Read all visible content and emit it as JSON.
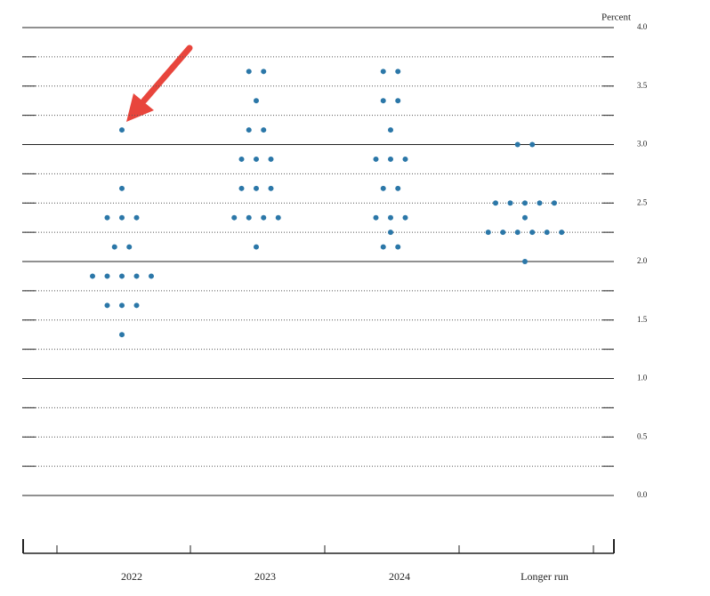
{
  "chart_data": {
    "type": "dot_plot",
    "y_label": "Percent",
    "categories": [
      "2022",
      "2023",
      "2024",
      "Longer run"
    ],
    "values": [
      [
        3.125,
        2.625,
        2.375,
        2.375,
        2.375,
        2.125,
        2.125,
        1.875,
        1.875,
        1.875,
        1.875,
        1.875,
        1.625,
        1.625,
        1.625,
        1.375
      ],
      [
        3.625,
        3.625,
        3.375,
        3.125,
        3.125,
        2.875,
        2.875,
        2.875,
        2.625,
        2.625,
        2.625,
        2.375,
        2.375,
        2.375,
        2.375,
        2.125
      ],
      [
        3.625,
        3.625,
        3.375,
        3.375,
        3.125,
        2.875,
        2.875,
        2.875,
        2.625,
        2.625,
        2.375,
        2.375,
        2.375,
        2.25,
        2.125,
        2.125
      ],
      [
        3.0,
        3.0,
        2.5,
        2.5,
        2.5,
        2.5,
        2.5,
        2.375,
        2.25,
        2.25,
        2.25,
        2.25,
        2.25,
        2.25,
        2.0
      ]
    ],
    "color": "#2b77a8",
    "ylim": [
      0,
      4
    ],
    "yticks": [
      {
        "value": 0,
        "label": "0.0"
      },
      0.5,
      {
        "value": 1,
        "label": "1.0"
      },
      1.5,
      {
        "value": 2,
        "label": "2.0"
      },
      2.5,
      {
        "value": 3,
        "label": "3.0"
      },
      3.5,
      {
        "value": 4,
        "label": "4.0"
      }
    ],
    "minor_yticks": [
      0.25,
      0.75,
      1.25,
      1.75,
      2.25,
      2.75,
      3.25,
      3.75
    ],
    "grid": true
  }
}
